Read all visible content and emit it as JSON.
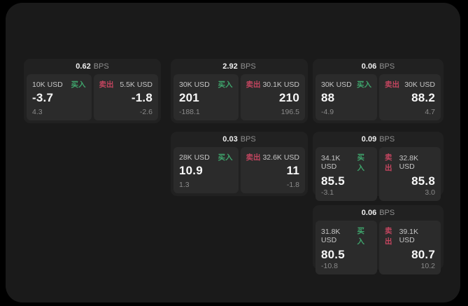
{
  "labels": {
    "bps_unit": "BPS",
    "buy": "买入",
    "sell": "卖出"
  },
  "colors": {
    "background": "#000000",
    "window": "#1a1a1a",
    "card": "#212121",
    "panel": "#2b2b2b",
    "buy_green": "#3fa56c",
    "sell_red": "#c2455f"
  },
  "cards": [
    {
      "bps": "0.62",
      "buy": {
        "size": "10K USD",
        "price": "-3.7",
        "sub": "4.3"
      },
      "sell": {
        "size": "5.5K USD",
        "price": "-1.8",
        "sub": "-2.6"
      }
    },
    {
      "bps": "2.92",
      "buy": {
        "size": "30K USD",
        "price": "201",
        "sub": "-188.1"
      },
      "sell": {
        "size": "30.1K USD",
        "price": "210",
        "sub": "196.5"
      }
    },
    {
      "bps": "0.06",
      "buy": {
        "size": "30K USD",
        "price": "88",
        "sub": "-4.9"
      },
      "sell": {
        "size": "30K USD",
        "price": "88.2",
        "sub": "4.7"
      }
    },
    {
      "bps": "0.03",
      "buy": {
        "size": "28K USD",
        "price": "10.9",
        "sub": "1.3"
      },
      "sell": {
        "size": "32.6K USD",
        "price": "11",
        "sub": "-1.8"
      }
    },
    {
      "bps": "0.09",
      "buy": {
        "size": "34.1K USD",
        "price": "85.5",
        "sub": "-3.1"
      },
      "sell": {
        "size": "32.8K USD",
        "price": "85.8",
        "sub": "3.0"
      }
    },
    {
      "bps": "0.06",
      "buy": {
        "size": "31.8K USD",
        "price": "80.5",
        "sub": "-10.8"
      },
      "sell": {
        "size": "39.1K USD",
        "price": "80.7",
        "sub": "10.2"
      }
    }
  ]
}
